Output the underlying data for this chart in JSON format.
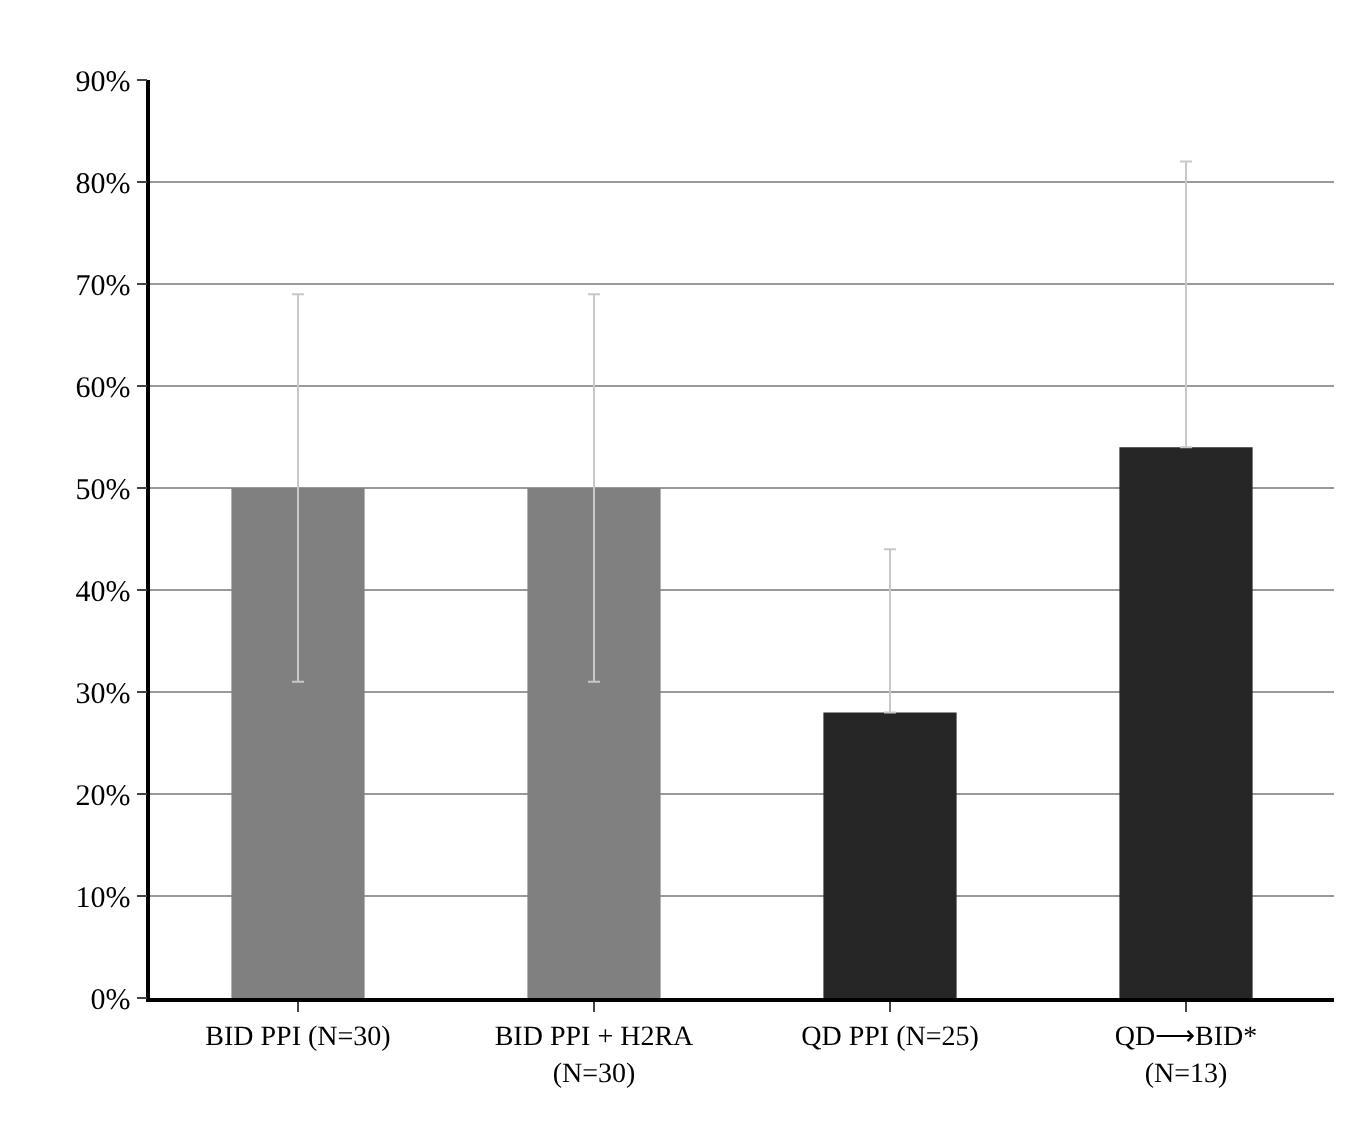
{
  "chart_data": {
    "type": "bar",
    "categories": [
      "BID PPI (N=30)",
      "BID PPI + H2RA\n(N=30)",
      "QD PPI (N=25)",
      "QD⟶BID*\n(N=13)"
    ],
    "values": [
      50,
      50,
      28,
      54
    ],
    "colors": [
      "#808080",
      "#808080",
      "#262626",
      "#262626"
    ],
    "errors": [
      [
        31,
        69
      ],
      [
        31,
        69
      ],
      [
        28,
        44
      ],
      [
        54,
        82
      ]
    ],
    "ylim": [
      0,
      90
    ],
    "yticks": [
      {
        "value": 0,
        "label": "0%"
      },
      {
        "value": 10,
        "label": "10%"
      },
      {
        "value": 20,
        "label": "20%"
      },
      {
        "value": 30,
        "label": "30%"
      },
      {
        "value": 40,
        "label": "40%"
      },
      {
        "value": 50,
        "label": "50%"
      },
      {
        "value": 60,
        "label": "60%"
      },
      {
        "value": 70,
        "label": "70%"
      },
      {
        "value": 80,
        "label": "80%"
      },
      {
        "value": 90,
        "label": "90%"
      }
    ],
    "grid": "y",
    "legend": false
  }
}
